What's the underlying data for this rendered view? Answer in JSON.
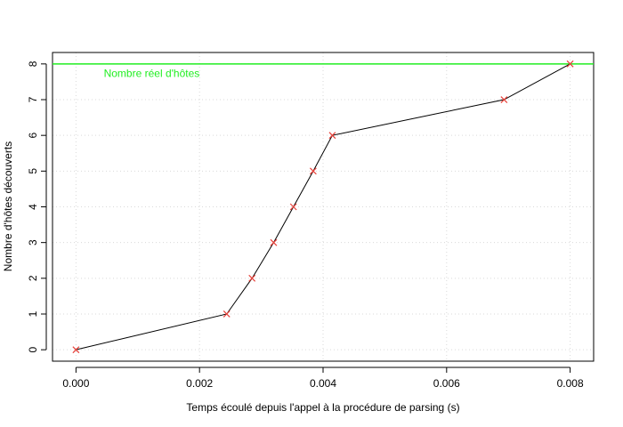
{
  "chart_data": {
    "type": "line",
    "title": "",
    "xlabel": "Temps écoulé depuis l'appel à la procédure de parsing (s)",
    "ylabel": "Nombre d'hôtes découverts",
    "xlim": [
      -0.00038,
      0.00838
    ],
    "ylim": [
      -0.32,
      8.32
    ],
    "x_ticks": [
      0,
      0.002,
      0.004,
      0.006,
      0.008
    ],
    "x_tick_labels": [
      "0.000",
      "0.002",
      "0.004",
      "0.006",
      "0.008"
    ],
    "y_ticks": [
      0,
      1,
      2,
      3,
      4,
      5,
      6,
      7,
      8
    ],
    "y_tick_labels": [
      "0",
      "1",
      "2",
      "3",
      "4",
      "5",
      "6",
      "7",
      "8"
    ],
    "grid": true,
    "series": [
      {
        "x": [
          0,
          0.00244,
          0.00285,
          0.0032,
          0.00352,
          0.00384,
          0.00415,
          0.00693,
          0.008
        ],
        "y": [
          0,
          1,
          2,
          3,
          4,
          5,
          6,
          7,
          8
        ],
        "line_color": "#000000",
        "marker_color": "#e8413a",
        "marker": "x"
      }
    ],
    "reference_line": {
      "y": 8,
      "color": "#22ee22",
      "label": "Nombre réel d'hôtes",
      "label_x": 0.00045,
      "label_y": 7.73
    }
  }
}
